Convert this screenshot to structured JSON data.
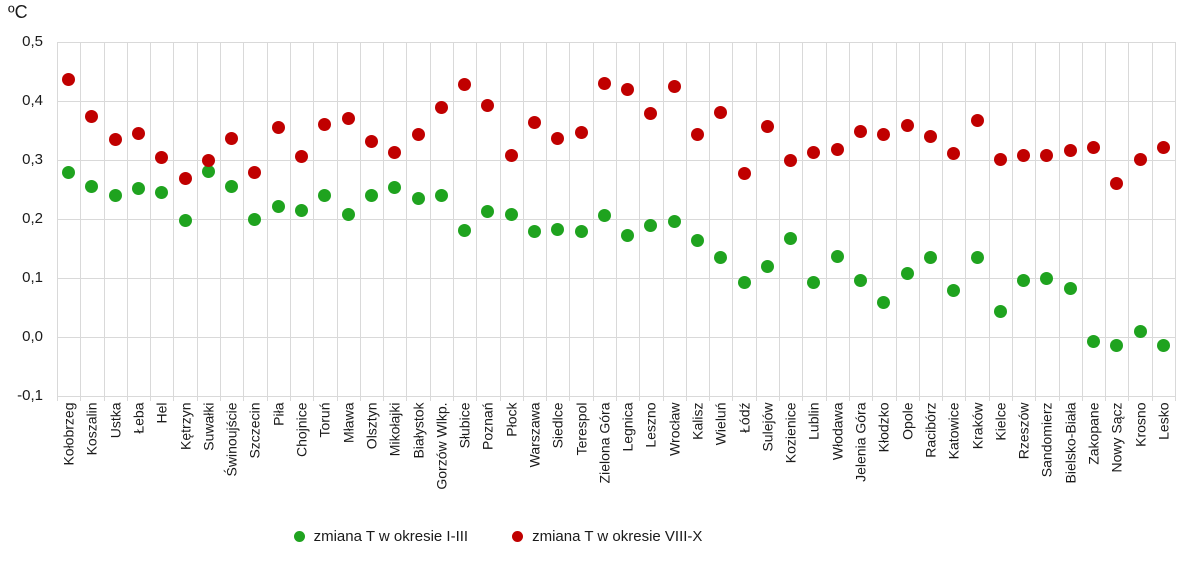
{
  "title": "ºC",
  "colors": {
    "series_green": "#1fa31f",
    "series_red": "#c00000",
    "gridline": "#d9d9d9",
    "text": "#1a1a1a"
  },
  "y_axis": {
    "tick_labels": [
      "0,5",
      "0,4",
      "0,3",
      "0,2",
      "0,1",
      "0,0",
      "-0,1"
    ],
    "max": 0.5,
    "min": -0.1,
    "step": 0.1
  },
  "legend": {
    "items": [
      {
        "label": "zmiana T w okresie I-III",
        "color": "#1fa31f"
      },
      {
        "label": "zmiana T w okresie VIII-X",
        "color": "#c00000"
      }
    ]
  },
  "chart_data": {
    "type": "scatter",
    "title": "ºC",
    "ylabel": "ºC",
    "xlabel": "",
    "ylim": [
      -0.1,
      0.5
    ],
    "grid": true,
    "legend_position": "bottom",
    "categories": [
      "Kołobrzeg",
      "Koszalin",
      "Ustka",
      "Łeba",
      "Hel",
      "Kętrzyn",
      "Suwałki",
      "Świnoujście",
      "Szczecin",
      "Piła",
      "Chojnice",
      "Toruń",
      "Mława",
      "Olsztyn",
      "Mikołajki",
      "Białystok",
      "Gorzów Wlkp.",
      "Słubice",
      "Poznań",
      "Płock",
      "Warszawa",
      "Siedlce",
      "Terespol",
      "Zielona Góra",
      "Legnica",
      "Leszno",
      "Wrocław",
      "Kalisz",
      "Wieluń",
      "Łódź",
      "Sulejów",
      "Kozienice",
      "Lublin",
      "Włodawa",
      "Jelenia Góra",
      "Kłodzko",
      "Opole",
      "Racibórz",
      "Katowice",
      "Kraków",
      "Kielce",
      "Rzeszów",
      "Sandomierz",
      "Bielsko-Biała",
      "Zakopane",
      "Nowy Sącz",
      "Krosno",
      "Lesko"
    ],
    "series": [
      {
        "name": "zmiana T w okresie I-III",
        "color": "#1fa31f",
        "values": [
          0.279,
          0.255,
          0.239,
          0.251,
          0.245,
          0.198,
          0.281,
          0.255,
          0.2,
          0.222,
          0.215,
          0.239,
          0.207,
          0.239,
          0.254,
          0.234,
          0.24,
          0.18,
          0.213,
          0.207,
          0.178,
          0.182,
          0.179,
          0.206,
          0.172,
          0.189,
          0.196,
          0.163,
          0.134,
          0.093,
          0.12,
          0.167,
          0.092,
          0.136,
          0.095,
          0.058,
          0.108,
          0.134,
          0.078,
          0.134,
          0.044,
          0.095,
          0.099,
          0.082,
          -0.008,
          -0.014,
          0.009,
          -0.014
        ]
      },
      {
        "name": "zmiana T w okresie VIII-X",
        "color": "#c00000",
        "values": [
          0.436,
          0.373,
          0.334,
          0.345,
          0.305,
          0.269,
          0.3,
          0.337,
          0.278,
          0.355,
          0.306,
          0.36,
          0.37,
          0.332,
          0.313,
          0.344,
          0.389,
          0.428,
          0.392,
          0.307,
          0.364,
          0.336,
          0.346,
          0.43,
          0.42,
          0.379,
          0.425,
          0.344,
          0.38,
          0.277,
          0.357,
          0.299,
          0.313,
          0.317,
          0.349,
          0.343,
          0.358,
          0.34,
          0.311,
          0.367,
          0.301,
          0.308,
          0.308,
          0.316,
          0.322,
          0.261,
          0.301,
          0.321
        ]
      }
    ]
  }
}
